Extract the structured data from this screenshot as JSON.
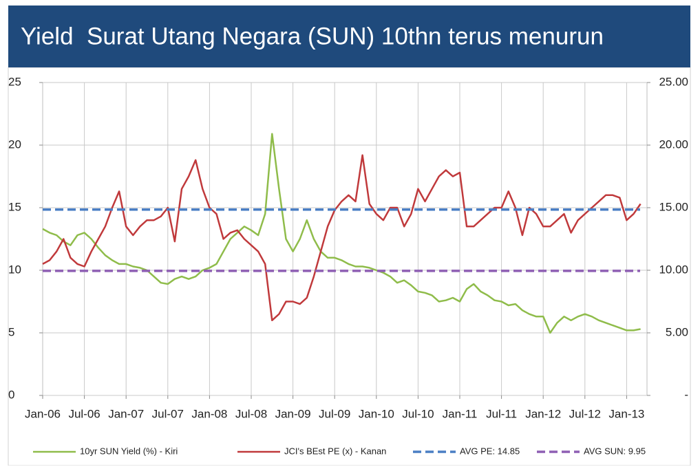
{
  "chart_data": {
    "type": "line",
    "title": "Yield  Surat Utang Negara (SUN) 10thn terus menurun",
    "categories": [
      "Jan-06",
      null,
      null,
      null,
      null,
      null,
      "Jul-06",
      null,
      null,
      null,
      null,
      null,
      "Jan-07",
      null,
      null,
      null,
      null,
      null,
      "Jul-07",
      null,
      null,
      null,
      null,
      null,
      "Jan-08",
      null,
      null,
      null,
      null,
      null,
      "Jul-08",
      null,
      null,
      null,
      null,
      null,
      "Jan-09",
      null,
      null,
      null,
      null,
      null,
      "Jul-09",
      null,
      null,
      null,
      null,
      null,
      "Jan-10",
      null,
      null,
      null,
      null,
      null,
      "Jul-10",
      null,
      null,
      null,
      null,
      null,
      "Jan-11",
      null,
      null,
      null,
      null,
      null,
      "Jul-11",
      null,
      null,
      null,
      null,
      null,
      "Jan-12",
      null,
      null,
      null,
      null,
      null,
      "Jul-12",
      null,
      null,
      null,
      null,
      null,
      "Jan-13",
      null,
      null
    ],
    "series": [
      {
        "name": "10yr SUN Yield (%) - Kiri",
        "color": "#8fbc4a",
        "axis": "y",
        "values": [
          13.3,
          13.0,
          12.8,
          12.3,
          12.0,
          12.8,
          13.0,
          12.5,
          11.8,
          11.2,
          10.8,
          10.5,
          10.5,
          10.3,
          10.2,
          10.0,
          9.5,
          9.0,
          8.9,
          9.3,
          9.5,
          9.3,
          9.5,
          10.0,
          10.2,
          10.5,
          11.5,
          12.5,
          13.0,
          13.5,
          13.2,
          12.8,
          14.5,
          20.9,
          16.5,
          12.5,
          11.5,
          12.5,
          14.0,
          12.5,
          11.5,
          11.0,
          11.0,
          10.8,
          10.5,
          10.3,
          10.3,
          10.2,
          10.0,
          9.8,
          9.5,
          9.0,
          9.2,
          8.8,
          8.3,
          8.2,
          8.0,
          7.5,
          7.6,
          7.8,
          7.5,
          8.5,
          8.9,
          8.3,
          8.0,
          7.6,
          7.5,
          7.2,
          7.3,
          6.8,
          6.5,
          6.3,
          6.3,
          5.0,
          5.8,
          6.3,
          6.0,
          6.3,
          6.5,
          6.3,
          6.0,
          5.8,
          5.6,
          5.4,
          5.2,
          5.2,
          5.3
        ]
      },
      {
        "name": "JCI's BEst PE (x) - Kanan",
        "color": "#c0393b",
        "axis": "y2",
        "values": [
          10.5,
          10.8,
          11.5,
          12.5,
          11.0,
          10.5,
          10.3,
          11.5,
          12.5,
          13.5,
          15.0,
          16.3,
          13.5,
          12.8,
          13.5,
          14.0,
          14.0,
          14.3,
          15.0,
          12.3,
          16.5,
          17.5,
          18.8,
          16.5,
          15.0,
          14.5,
          12.5,
          13.0,
          13.2,
          12.5,
          12.0,
          11.5,
          10.5,
          6.0,
          6.5,
          7.5,
          7.5,
          7.3,
          7.8,
          9.5,
          11.5,
          13.5,
          14.8,
          15.5,
          16.0,
          15.5,
          19.2,
          15.3,
          14.5,
          14.0,
          15.0,
          15.0,
          13.5,
          14.5,
          16.5,
          15.5,
          16.5,
          17.5,
          18.0,
          17.5,
          17.8,
          13.5,
          13.5,
          14.0,
          14.5,
          15.0,
          15.0,
          16.3,
          15.0,
          12.8,
          15.0,
          14.5,
          13.5,
          13.5,
          14.0,
          14.5,
          13.0,
          14.0,
          14.5,
          15.0,
          15.5,
          16.0,
          16.0,
          15.8,
          14.0,
          14.5,
          15.3
        ]
      },
      {
        "name": "AVG PE: 14.85",
        "color": "#4a7ec4",
        "axis": "y2",
        "dashed": true,
        "value": 14.85
      },
      {
        "name": "AVG SUN: 9.95",
        "color": "#8e5fb3",
        "axis": "y",
        "dashed": true,
        "value": 9.95
      }
    ],
    "ylim": [
      0,
      25
    ],
    "yticks": [
      0,
      5,
      10,
      15,
      20,
      25
    ],
    "y2lim": [
      0,
      25
    ],
    "y2ticks": [
      {
        "value": 0,
        "label": "-"
      },
      {
        "value": 5,
        "label": "5.00"
      },
      {
        "value": 10,
        "label": "10.00"
      },
      {
        "value": 15,
        "label": "15.00"
      },
      {
        "value": 20,
        "label": "20.00"
      },
      {
        "value": 25,
        "label": "25.00"
      }
    ],
    "grid": true,
    "legend": "bottom"
  }
}
